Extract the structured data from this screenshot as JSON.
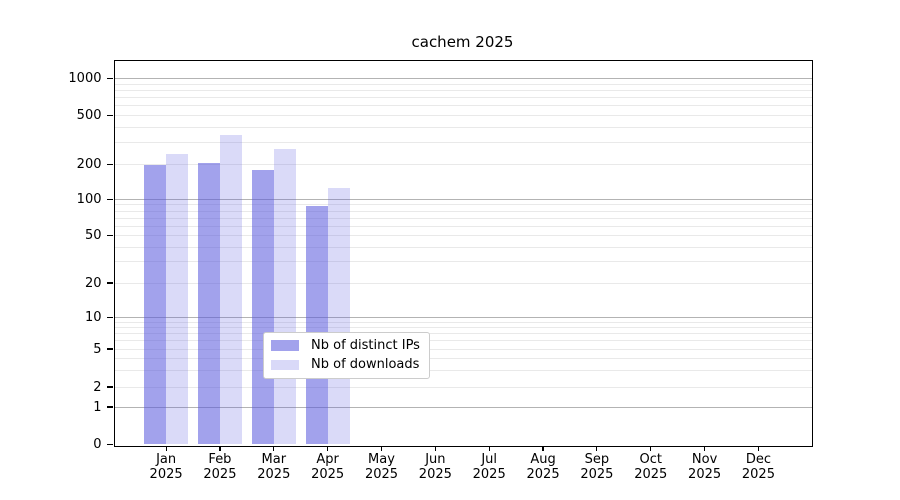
{
  "title": "cachem 2025",
  "chart_data": {
    "type": "bar",
    "title": "cachem 2025",
    "categories": [
      "Jan",
      "Feb",
      "Mar",
      "Apr",
      "May",
      "Jun",
      "Jul",
      "Aug",
      "Sep",
      "Oct",
      "Nov",
      "Dec"
    ],
    "year_label": "2025",
    "series": [
      {
        "name": "Nb of distinct IPs",
        "color": "#a2a2ec",
        "bar_fill": "rgba(85,85,221,0.55)",
        "values": [
          197,
          205,
          178,
          88,
          0,
          0,
          0,
          0,
          0,
          0,
          0,
          0
        ]
      },
      {
        "name": "Nb of downloads",
        "color": "#d9d9f8",
        "bar_fill": "rgba(85,85,221,0.22)",
        "values": [
          245,
          350,
          265,
          126,
          0,
          0,
          0,
          0,
          0,
          0,
          0,
          0
        ]
      }
    ],
    "yticks": [
      0,
      1,
      2,
      5,
      10,
      20,
      50,
      100,
      200,
      500,
      1000
    ],
    "ylim": [
      0,
      1400
    ],
    "yscale": "log-like (symlog: logarithmic above 1, linear 0-1)",
    "grid": "horizontal; dark lines at 1,10,100,1000; faint lines at 2-9 multiples",
    "legend_position": "inside, lower middle",
    "xlabel": "",
    "ylabel": ""
  },
  "colors": {
    "axis": "#000000",
    "major_grid": "#b3b3b3",
    "minor_grid": "#e9e9e9",
    "legend_border": "#cccccc",
    "background": "#ffffff"
  }
}
